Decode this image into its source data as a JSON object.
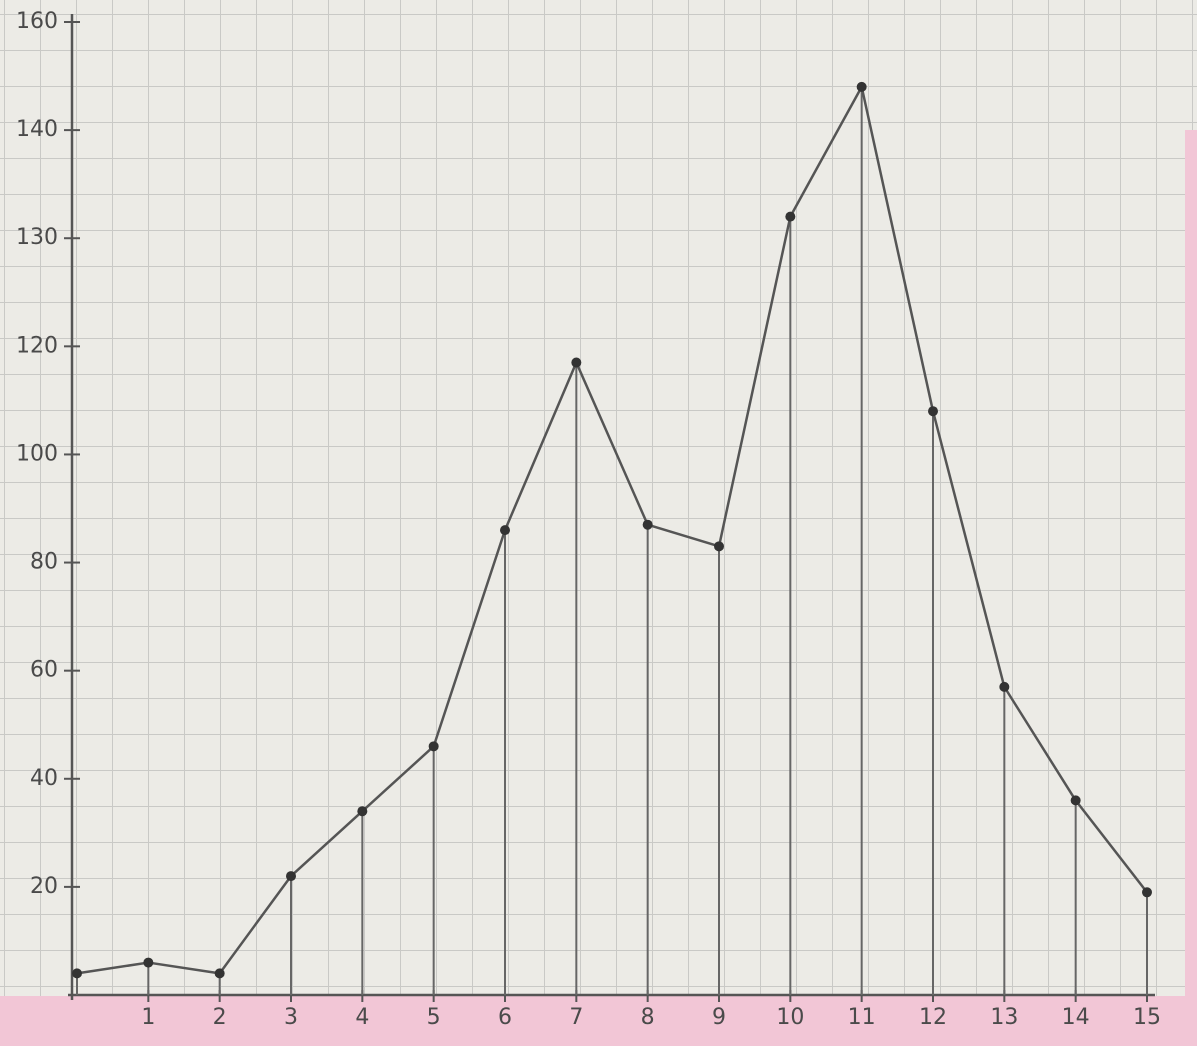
{
  "chart_data": {
    "type": "line",
    "x": [
      0,
      1,
      2,
      3,
      4,
      5,
      6,
      7,
      8,
      9,
      10,
      11,
      12,
      13,
      14,
      15
    ],
    "values": [
      4,
      6,
      4,
      22,
      34,
      46,
      86,
      117,
      87,
      83,
      132,
      148,
      108,
      57,
      36,
      19
    ],
    "color": "#555555",
    "xlim": [
      0,
      15
    ],
    "xticks": [
      1,
      2,
      3,
      4,
      5,
      6,
      7,
      8,
      9,
      10,
      11,
      12,
      13,
      14,
      15
    ],
    "ylim": [
      0,
      160
    ],
    "yticks": [
      20,
      40,
      60,
      80,
      100,
      120,
      130,
      140,
      160
    ],
    "drop_lines": true
  }
}
